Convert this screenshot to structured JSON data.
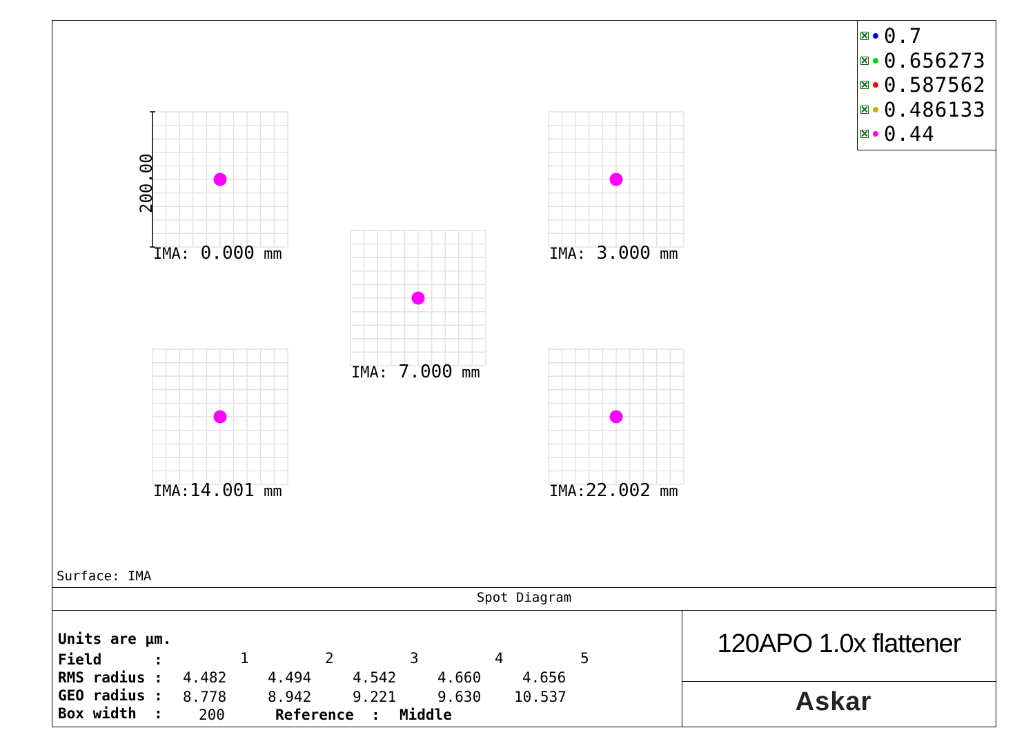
{
  "chart_data": {
    "type": "scatter",
    "title": "Spot Diagram",
    "surface_label": "Surface: IMA",
    "scale_bar_label": "200.00",
    "units_note": "Units are µm.",
    "fields": [
      {
        "index": 1,
        "label_prefix": "IMA:",
        "value": "0.000",
        "unit": "mm",
        "spot_x": 0,
        "spot_y": 0
      },
      {
        "index": 2,
        "label_prefix": "IMA:",
        "value": "3.000",
        "unit": "mm",
        "spot_x": 0,
        "spot_y": 0
      },
      {
        "index": 3,
        "label_prefix": "IMA:",
        "value": "7.000",
        "unit": "mm",
        "spot_x": 0,
        "spot_y": 0
      },
      {
        "index": 4,
        "label_prefix": "IMA:",
        "value": "14.001",
        "unit": "mm",
        "spot_x": 0,
        "spot_y": 0
      },
      {
        "index": 5,
        "label_prefix": "IMA:",
        "value": "22.002",
        "unit": "mm",
        "spot_x": 0,
        "spot_y": 0
      }
    ],
    "box_width_um": 200,
    "legend": [
      {
        "label": "0.7",
        "color": "#0000ff"
      },
      {
        "label": "0.656273",
        "color": "#00dd00"
      },
      {
        "label": "0.587562",
        "color": "#ff0000"
      },
      {
        "label": "0.486133",
        "color": "#c8b400"
      },
      {
        "label": "0.44",
        "color": "#ff00ff"
      }
    ],
    "table": {
      "field_label": "Field      :",
      "field_numbers": [
        "1",
        "2",
        "3",
        "4",
        "5"
      ],
      "rms_label": "RMS radius :",
      "rms_values": [
        "4.482",
        "4.494",
        "4.542",
        "4.660",
        "4.656"
      ],
      "geo_label": "GEO radius :",
      "geo_values": [
        "8.778",
        "8.942",
        "9.221",
        "9.630",
        "10.537"
      ],
      "box_label": "Box width  :",
      "box_value": "200",
      "reference_label": "Reference  :",
      "reference_value": "Middle"
    }
  },
  "product_name": "120APO 1.0x flattener",
  "brand": "Askar"
}
